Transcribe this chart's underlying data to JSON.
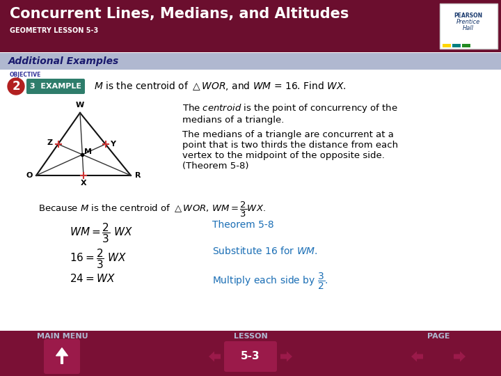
{
  "title": "Concurrent Lines, Medians, and Altitudes",
  "subtitle": "GEOMETRY LESSON 5-3",
  "section_label": "Additional Examples",
  "header_bg": "#6B0E2E",
  "section_bg": "#B0B8D0",
  "nav_bg": "#7A1035",
  "body_bg": "#FFFFFF",
  "header_text_color": "#FFFFFF",
  "section_text_color": "#1A1A6E",
  "nav_label_color": "#B0B8D0",
  "objective_num": "2",
  "example_num": "3",
  "example_bg": "#2E7D6B",
  "obj_bg": "#B22020",
  "problem_text": "M is the centroid of WOR, and WM = 16. Find WX.",
  "theorem_color": "#1a6eb5",
  "nav_text_color": "#FFFFFF",
  "tick_color": "#CC3333",
  "tri_color": "#111111",
  "pearson_colors": [
    "#FFD700",
    "#008080",
    "#228B22"
  ]
}
